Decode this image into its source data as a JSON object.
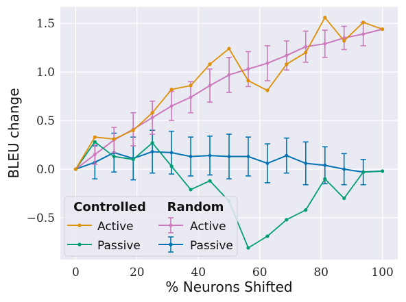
{
  "chart_data": {
    "type": "line",
    "xlabel": "% Neurons Shifted",
    "ylabel": "BLEU change",
    "xlim": [
      -5,
      105
    ],
    "ylim": [
      -0.93,
      1.67
    ],
    "xticks": [
      0,
      20,
      40,
      60,
      80,
      100
    ],
    "yticks": [
      -0.5,
      0.0,
      0.5,
      1.0,
      1.5
    ],
    "xtick_labels": [
      "0",
      "20",
      "40",
      "60",
      "80",
      "100"
    ],
    "ytick_labels": [
      "−0.5",
      "0.0",
      "0.5",
      "1.0",
      "1.5"
    ],
    "grid": true,
    "background": "#EAEAF2",
    "legend": {
      "placement": "lower-left",
      "groups": [
        {
          "title": "Controlled",
          "entries": [
            "Active",
            "Passive"
          ]
        },
        {
          "title": "Random",
          "entries": [
            "Active",
            "Passive"
          ]
        }
      ]
    },
    "x": [
      0,
      6.25,
      12.5,
      18.75,
      25,
      31.25,
      37.5,
      43.75,
      50,
      56.25,
      62.5,
      68.75,
      75,
      81.25,
      87.5,
      93.75,
      100
    ],
    "series": [
      {
        "group": "Controlled",
        "label": "Active",
        "color": "#DE8F05",
        "errorbars": false,
        "values": [
          0.0,
          0.33,
          0.31,
          0.4,
          0.58,
          0.82,
          0.86,
          1.08,
          1.24,
          0.91,
          0.81,
          1.08,
          1.2,
          1.56,
          1.32,
          1.51,
          1.44
        ]
      },
      {
        "group": "Controlled",
        "label": "Passive",
        "color": "#029E73",
        "errorbars": false,
        "values": [
          0.0,
          0.28,
          0.13,
          0.1,
          0.27,
          0.03,
          -0.21,
          -0.12,
          -0.33,
          -0.81,
          -0.69,
          -0.52,
          -0.42,
          -0.1,
          -0.3,
          -0.03,
          -0.02
        ]
      },
      {
        "group": "Random",
        "label": "Active",
        "color": "#CC78BC",
        "errorbars": true,
        "values": [
          0.0,
          0.15,
          0.3,
          0.41,
          0.53,
          0.65,
          0.74,
          0.86,
          0.97,
          1.03,
          1.09,
          1.17,
          1.26,
          1.29,
          1.35,
          1.39,
          1.44
        ],
        "error": [
          0.0,
          0.1,
          0.13,
          0.17,
          0.17,
          0.15,
          0.16,
          0.17,
          0.18,
          0.18,
          0.18,
          0.15,
          0.16,
          0.14,
          0.12,
          0.12,
          0.0
        ]
      },
      {
        "group": "Random",
        "label": "Passive",
        "color": "#0173B2",
        "errorbars": true,
        "values": [
          0.0,
          0.07,
          0.17,
          0.11,
          0.18,
          0.17,
          0.13,
          0.14,
          0.13,
          0.13,
          0.06,
          0.14,
          0.06,
          0.04,
          0.0,
          -0.03,
          -0.02
        ],
        "error": [
          0.0,
          0.17,
          0.2,
          0.22,
          0.22,
          0.22,
          0.2,
          0.2,
          0.23,
          0.2,
          0.2,
          0.18,
          0.22,
          0.19,
          0.16,
          0.13,
          0.0
        ]
      }
    ]
  }
}
